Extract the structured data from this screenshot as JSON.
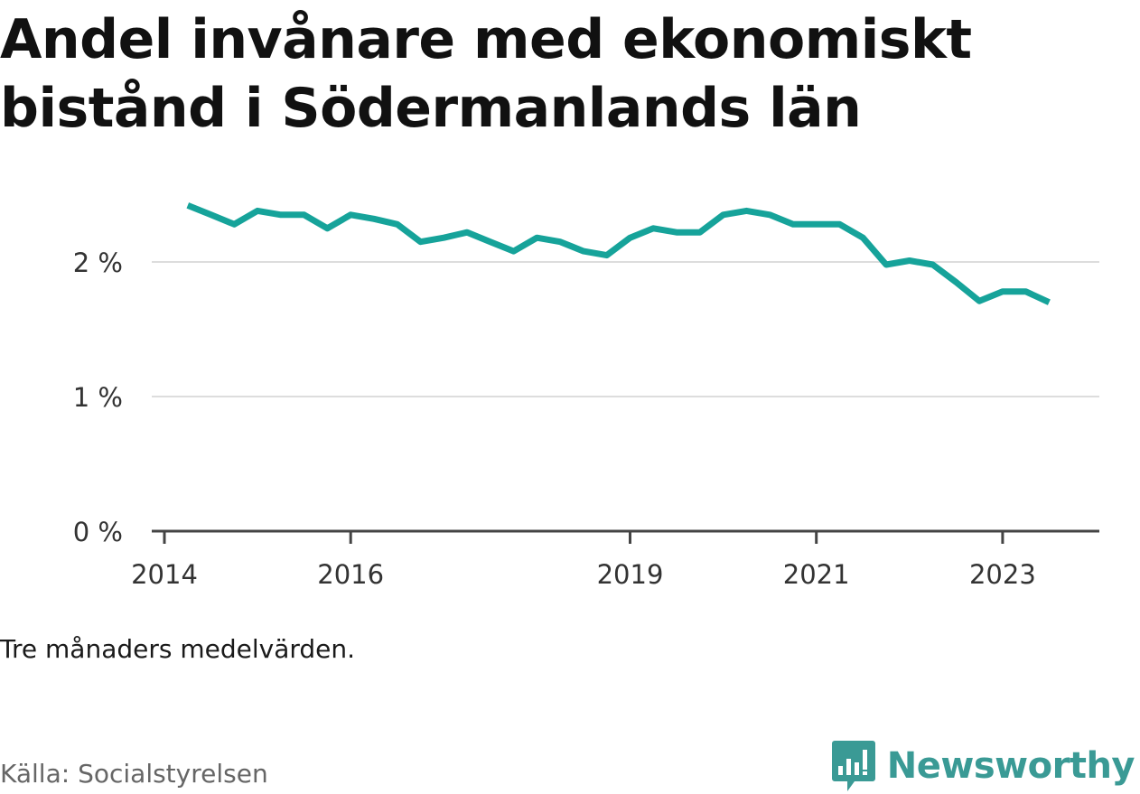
{
  "title": "Andel invånare med ekonomiskt bistånd i Södermanlands län",
  "note": "Tre månaders medelvärden.",
  "source": "Källa: Socialstyrelsen",
  "brand": {
    "name": "Newsworthy",
    "icon": "newsworthy-logo-icon",
    "color": "#3a9a95"
  },
  "chart_data": {
    "type": "line",
    "title": "Andel invånare med ekonomiskt bistånd i Södermanlands län",
    "ylim": [
      0,
      2.5
    ],
    "y_ticks": [
      0,
      1,
      2
    ],
    "y_tick_labels": [
      "0 %",
      "1 %",
      "2 %"
    ],
    "x_ticks": [
      2014,
      2016,
      2019,
      2021,
      2023
    ],
    "x_tick_labels": [
      "2014",
      "2016",
      "2019",
      "2021",
      "2023"
    ],
    "grid": true,
    "line_color": "#16a39a",
    "series": [
      {
        "x": [
          2014.25,
          2014.5,
          2014.75,
          2015.0,
          2015.25,
          2015.5,
          2015.75,
          2016.0,
          2016.25,
          2016.5,
          2016.75,
          2017.0,
          2017.25,
          2017.5,
          2017.75,
          2018.0,
          2018.25,
          2018.5,
          2018.75,
          2019.0,
          2019.25,
          2019.5,
          2019.75,
          2020.0,
          2020.25,
          2020.5,
          2020.75,
          2021.0,
          2021.25,
          2021.5,
          2021.75,
          2022.0,
          2022.25,
          2022.5,
          2022.75,
          2023.0,
          2023.25,
          2023.5
        ],
        "values": [
          2.42,
          2.35,
          2.28,
          2.38,
          2.35,
          2.35,
          2.25,
          2.35,
          2.32,
          2.28,
          2.15,
          2.18,
          2.22,
          2.15,
          2.08,
          2.18,
          2.15,
          2.08,
          2.05,
          2.18,
          2.25,
          2.22,
          2.22,
          2.35,
          2.38,
          2.35,
          2.28,
          2.28,
          2.28,
          2.18,
          1.98,
          2.01,
          1.98,
          1.85,
          1.71,
          1.78,
          1.78,
          1.7
        ]
      }
    ]
  }
}
